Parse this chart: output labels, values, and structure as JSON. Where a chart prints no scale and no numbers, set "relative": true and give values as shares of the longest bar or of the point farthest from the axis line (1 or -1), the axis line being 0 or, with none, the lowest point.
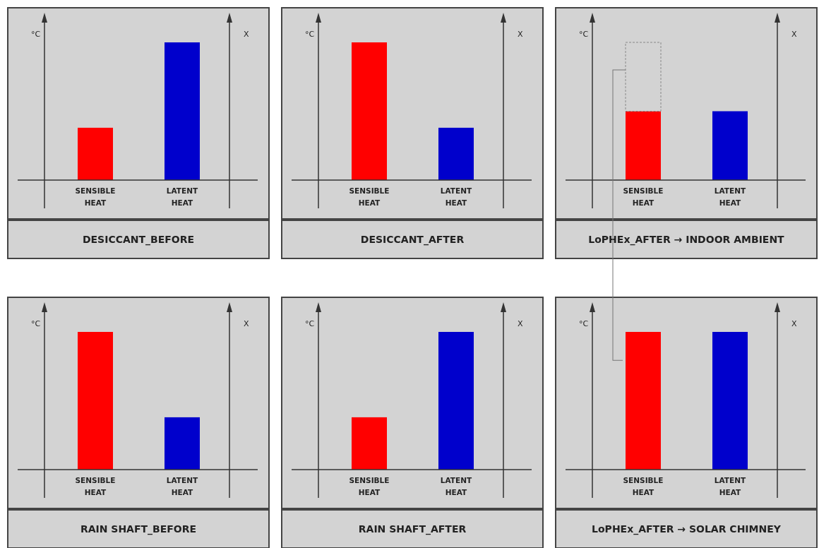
{
  "chart_data": [
    {
      "type": "bar",
      "title": "DESICCANT_BEFORE",
      "ylabel": "°C",
      "y2label": "X",
      "relative": true,
      "categories": [
        "SENSIBLE HEAT",
        "LATENT HEAT"
      ],
      "values": [
        0.38,
        1
      ],
      "colors": [
        "#ff0000",
        "#0000cc"
      ]
    },
    {
      "type": "bar",
      "title": "DESICCANT_AFTER",
      "ylabel": "°C",
      "y2label": "X",
      "relative": true,
      "categories": [
        "SENSIBLE HEAT",
        "LATENT HEAT"
      ],
      "values": [
        1,
        0.38
      ],
      "colors": [
        "#ff0000",
        "#0000cc"
      ]
    },
    {
      "type": "bar",
      "title": "LoPHEx_AFTER → INDOOR AMBIENT",
      "ylabel": "°C",
      "y2label": "X",
      "relative": true,
      "stacked": true,
      "categories": [
        "SENSIBLE HEAT",
        "LATENT HEAT"
      ],
      "series": [
        {
          "values": [
            0.5,
            0.5
          ],
          "colors": [
            "#ff0000",
            "#0000cc"
          ]
        },
        {
          "values": [
            0.5,
            null
          ],
          "color": "#d3d3d3",
          "line_style": "dashed"
        }
      ]
    },
    {
      "type": "bar",
      "title": "RAIN SHAFT_BEFORE",
      "ylabel": "°C",
      "y2label": "X",
      "relative": true,
      "categories": [
        "SENSIBLE HEAT",
        "LATENT HEAT"
      ],
      "values": [
        1,
        0.38
      ],
      "colors": [
        "#ff0000",
        "#0000cc"
      ]
    },
    {
      "type": "bar",
      "title": "RAIN SHAFT_AFTER",
      "ylabel": "°C",
      "y2label": "X",
      "relative": true,
      "categories": [
        "SENSIBLE HEAT",
        "LATENT HEAT"
      ],
      "values": [
        0.38,
        1
      ],
      "colors": [
        "#ff0000",
        "#0000cc"
      ]
    },
    {
      "type": "bar",
      "title": "LoPHEx_AFTER → SOLAR CHIMNEY",
      "ylabel": "°C",
      "y2label": "X",
      "relative": true,
      "categories": [
        "SENSIBLE HEAT",
        "LATENT HEAT"
      ],
      "values": [
        1,
        1
      ],
      "colors": [
        "#ff0000",
        "#0000cc"
      ]
    }
  ]
}
